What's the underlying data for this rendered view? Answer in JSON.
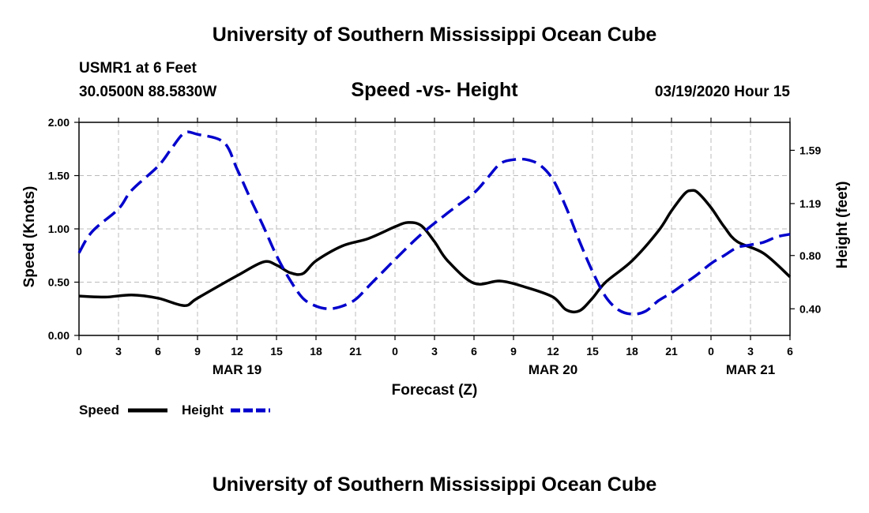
{
  "header": {
    "title": "University of Southern Mississippi Ocean Cube",
    "station": "USMR1 at 6 Feet",
    "coordinates": "30.0500N 88.5830W",
    "chart_title": "Speed -vs- Height",
    "datetime": "03/19/2020 Hour 15"
  },
  "footer": {
    "title": "University of Southern Mississippi Ocean Cube"
  },
  "legend": {
    "speed_label": "Speed",
    "height_label": "Height"
  },
  "colors": {
    "speed": "#000000",
    "height": "#0000cc",
    "grid": "#bbbbbb"
  },
  "chart_data": {
    "type": "line",
    "title": "Speed -vs- Height",
    "xlabel": "Forecast (Z)",
    "ylabel": "Speed (Knots)",
    "y2label": "Height (feet)",
    "xlim": [
      0,
      54
    ],
    "ylim": [
      0,
      2
    ],
    "y2lim": [
      0.2,
      1.8
    ],
    "x_ticks": [
      0,
      3,
      6,
      9,
      12,
      15,
      18,
      21,
      24,
      27,
      30,
      33,
      36,
      39,
      42,
      45,
      48,
      51,
      54
    ],
    "x_tick_labels": [
      "0",
      "3",
      "6",
      "9",
      "12",
      "15",
      "18",
      "21",
      "0",
      "3",
      "6",
      "9",
      "12",
      "15",
      "18",
      "21",
      "0",
      "3",
      "6"
    ],
    "y_ticks": [
      0,
      0.5,
      1,
      1.5,
      2
    ],
    "y_tick_labels": [
      "0.00",
      "0.50",
      "1.00",
      "1.50",
      "2.00"
    ],
    "y2_ticks": [
      0.4,
      0.8,
      1.19,
      1.59
    ],
    "y2_tick_labels": [
      "0.40",
      "0.80",
      "1.19",
      "1.59"
    ],
    "date_labels": [
      {
        "x": 12,
        "label": "MAR 19"
      },
      {
        "x": 36,
        "label": "MAR 20"
      },
      {
        "x": 51,
        "label": "MAR 21"
      }
    ],
    "series": [
      {
        "name": "Speed",
        "axis": "left",
        "style": "solid",
        "x": [
          0,
          2,
          4,
          6,
          8,
          9,
          12,
          14,
          15,
          16,
          17,
          18,
          20,
          22,
          24,
          25,
          26,
          27,
          28,
          30,
          32,
          34,
          36,
          37,
          38,
          39,
          40,
          42,
          44,
          45,
          46,
          46.5,
          47,
          48,
          49,
          50,
          52,
          54
        ],
        "y": [
          0.37,
          0.36,
          0.38,
          0.35,
          0.28,
          0.35,
          0.56,
          0.69,
          0.66,
          0.59,
          0.58,
          0.7,
          0.84,
          0.91,
          1.02,
          1.06,
          1.03,
          0.88,
          0.7,
          0.49,
          0.51,
          0.45,
          0.36,
          0.24,
          0.23,
          0.35,
          0.5,
          0.7,
          0.98,
          1.17,
          1.33,
          1.36,
          1.34,
          1.2,
          1.02,
          0.88,
          0.77,
          0.55
        ]
      },
      {
        "name": "Height",
        "axis": "right",
        "style": "dashed",
        "x": [
          0,
          1,
          3,
          4,
          6,
          7,
          8,
          9,
          11,
          12,
          13,
          14,
          15,
          16,
          17,
          18,
          19,
          20,
          21,
          22,
          23,
          24,
          26,
          28,
          30,
          31,
          32,
          33,
          34,
          35,
          36,
          37,
          38,
          39,
          40,
          41,
          42,
          43,
          44,
          45,
          46,
          47,
          48,
          49,
          50,
          51,
          52,
          53,
          54
        ],
        "y": [
          0.82,
          0.98,
          1.15,
          1.29,
          1.47,
          1.6,
          1.72,
          1.71,
          1.65,
          1.45,
          1.23,
          1.02,
          0.8,
          0.62,
          0.48,
          0.42,
          0.4,
          0.42,
          0.47,
          0.57,
          0.67,
          0.77,
          0.96,
          1.12,
          1.27,
          1.38,
          1.49,
          1.52,
          1.52,
          1.48,
          1.37,
          1.16,
          0.91,
          0.68,
          0.49,
          0.39,
          0.36,
          0.38,
          0.46,
          0.52,
          0.59,
          0.66,
          0.74,
          0.8,
          0.86,
          0.88,
          0.9,
          0.94,
          0.96
        ]
      }
    ],
    "legend_position": "bottom-left"
  }
}
